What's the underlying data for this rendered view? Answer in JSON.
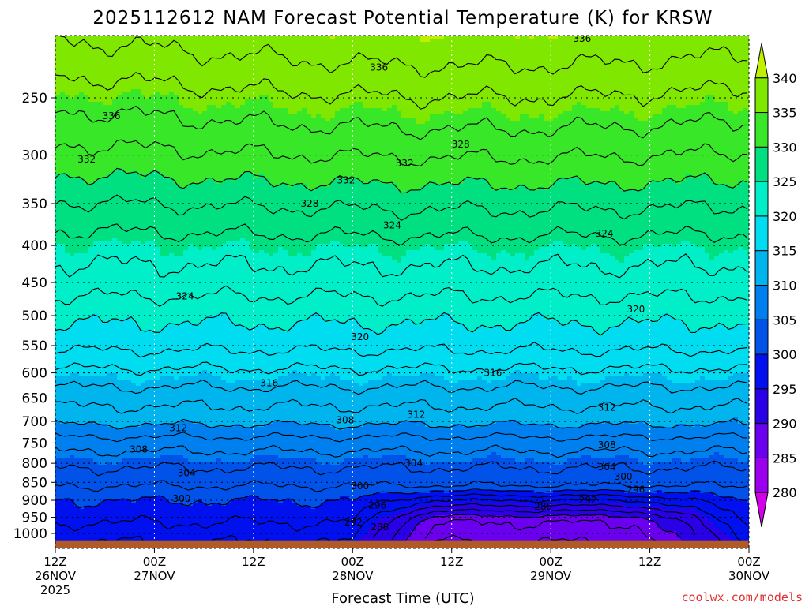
{
  "chart_data": {
    "type": "contour",
    "title": "2025112612 NAM Forecast Potential Temperature (K) for KRSW",
    "xlabel": "Forecast Time (UTC)",
    "ylabel": "",
    "y_scale": "log-pressure",
    "ylim": [
      1025,
      200
    ],
    "y_ticks": [
      250,
      300,
      350,
      400,
      450,
      500,
      550,
      600,
      650,
      700,
      750,
      800,
      850,
      900,
      950,
      1000
    ],
    "x_ticks": [
      {
        "label": "12Z",
        "date": "26NOV",
        "year": "2025"
      },
      {
        "label": "00Z",
        "date": "27NOV",
        "year": ""
      },
      {
        "label": "12Z",
        "date": "",
        "year": ""
      },
      {
        "label": "00Z",
        "date": "28NOV",
        "year": ""
      },
      {
        "label": "12Z",
        "date": "",
        "year": ""
      },
      {
        "label": "00Z",
        "date": "29NOV",
        "year": ""
      },
      {
        "label": "12Z",
        "date": "",
        "year": ""
      },
      {
        "label": "00Z",
        "date": "30NOV",
        "year": ""
      }
    ],
    "x_hours": [
      0,
      84
    ],
    "grid": true,
    "colorbar": {
      "levels": [
        280,
        285,
        290,
        295,
        300,
        305,
        310,
        315,
        320,
        325,
        330,
        335,
        340
      ],
      "colors": [
        "#d400e8",
        "#9a00ee",
        "#6a00ee",
        "#2a00e6",
        "#0010ee",
        "#0052e8",
        "#0080ee",
        "#00b4ee",
        "#00dcf0",
        "#00eec8",
        "#00e080",
        "#38e828",
        "#80e800",
        "#c0f000"
      ],
      "extend": "both"
    },
    "contour_labels": [
      {
        "value": "336",
        "hour": 63.8,
        "p": 207
      },
      {
        "value": "336",
        "hour": 39.2,
        "p": 227
      },
      {
        "value": "336",
        "hour": 6.8,
        "p": 265
      },
      {
        "value": "332",
        "hour": 3.8,
        "p": 304
      },
      {
        "value": "332",
        "hour": 35.2,
        "p": 325
      },
      {
        "value": "332",
        "hour": 42.3,
        "p": 308
      },
      {
        "value": "328",
        "hour": 49.1,
        "p": 290
      },
      {
        "value": "328",
        "hour": 30.8,
        "p": 350
      },
      {
        "value": "324",
        "hour": 40.8,
        "p": 375
      },
      {
        "value": "324",
        "hour": 66.5,
        "p": 385
      },
      {
        "value": "324",
        "hour": 15.7,
        "p": 470
      },
      {
        "value": "320",
        "hour": 70.3,
        "p": 490
      },
      {
        "value": "320",
        "hour": 36.9,
        "p": 535
      },
      {
        "value": "316",
        "hour": 53.0,
        "p": 600
      },
      {
        "value": "316",
        "hour": 25.9,
        "p": 620
      },
      {
        "value": "312",
        "hour": 43.7,
        "p": 685
      },
      {
        "value": "312",
        "hour": 66.8,
        "p": 670
      },
      {
        "value": "312",
        "hour": 14.9,
        "p": 715
      },
      {
        "value": "308",
        "hour": 35.1,
        "p": 697
      },
      {
        "value": "308",
        "hour": 66.8,
        "p": 755
      },
      {
        "value": "308",
        "hour": 10.1,
        "p": 765
      },
      {
        "value": "304",
        "hour": 43.4,
        "p": 800
      },
      {
        "value": "304",
        "hour": 66.8,
        "p": 810
      },
      {
        "value": "304",
        "hour": 15.9,
        "p": 825
      },
      {
        "value": "300",
        "hour": 68.8,
        "p": 835
      },
      {
        "value": "300",
        "hour": 36.9,
        "p": 860
      },
      {
        "value": "300",
        "hour": 15.3,
        "p": 895
      },
      {
        "value": "296",
        "hour": 70.3,
        "p": 870
      },
      {
        "value": "296",
        "hour": 39.0,
        "p": 915
      },
      {
        "value": "292",
        "hour": 64.5,
        "p": 900
      },
      {
        "value": "292",
        "hour": 36.1,
        "p": 965
      },
      {
        "value": "288",
        "hour": 59.1,
        "p": 918
      },
      {
        "value": "288",
        "hour": 39.3,
        "p": 980
      }
    ],
    "terrain_color": "#b05a28"
  },
  "credit": "coolwx.com/models"
}
